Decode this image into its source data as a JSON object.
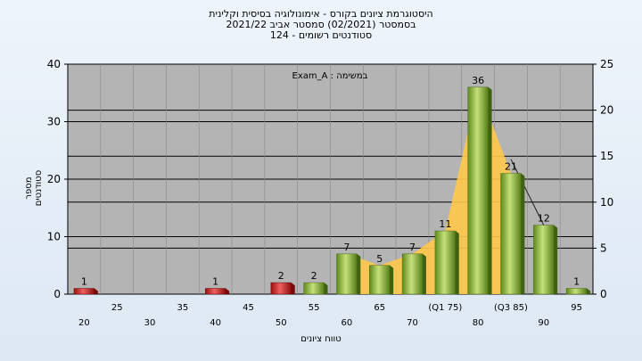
{
  "header": {
    "line1": "היסטוגרמת ציונים בקורס - אימונולוגיה בסיסית וקלינית",
    "line2": "בסמסטר  (02/2021)  סמסטר אביב 2021/22",
    "line3": "סטודנטים רשומים - 124"
  },
  "chart_data": {
    "type": "bar",
    "title": "היסטוגרמת ציונים בקורס - אימונולוגיה בסיסית וקלינית",
    "xlabel": "טווח ציונים",
    "ylabel": "מספר סטודנטים",
    "series_label": "Exam_A : במשימה",
    "ylim_left": [
      0,
      40
    ],
    "ylim_right": [
      0,
      25
    ],
    "yticks_left": [
      "0",
      "10",
      "20",
      "30",
      "40"
    ],
    "yticks_right": [
      "0",
      "5",
      "10",
      "15",
      "20",
      "25"
    ],
    "categories": [
      20,
      25,
      30,
      35,
      40,
      45,
      50,
      55,
      60,
      65,
      70,
      75,
      80,
      85,
      90,
      95
    ],
    "tick_labels": [
      "20",
      "25",
      "30",
      "35",
      "40",
      "45",
      "50",
      "55",
      "60",
      "65",
      "70",
      "(Q1 75)",
      "80",
      "(Q3 85)",
      "90",
      "95"
    ],
    "values": [
      1,
      0,
      0,
      0,
      1,
      0,
      2,
      2,
      7,
      5,
      7,
      11,
      36,
      21,
      12,
      1
    ],
    "bar_colors": [
      "red",
      "none",
      "none",
      "none",
      "red",
      "none",
      "red",
      "green",
      "green",
      "green",
      "green",
      "green",
      "green",
      "green",
      "green",
      "green"
    ],
    "colors": {
      "red": "#d42a2a",
      "green": "#8cb83a",
      "plot_bg": "#b4b4b4",
      "curve": "#ffc84a"
    },
    "grid": true
  }
}
